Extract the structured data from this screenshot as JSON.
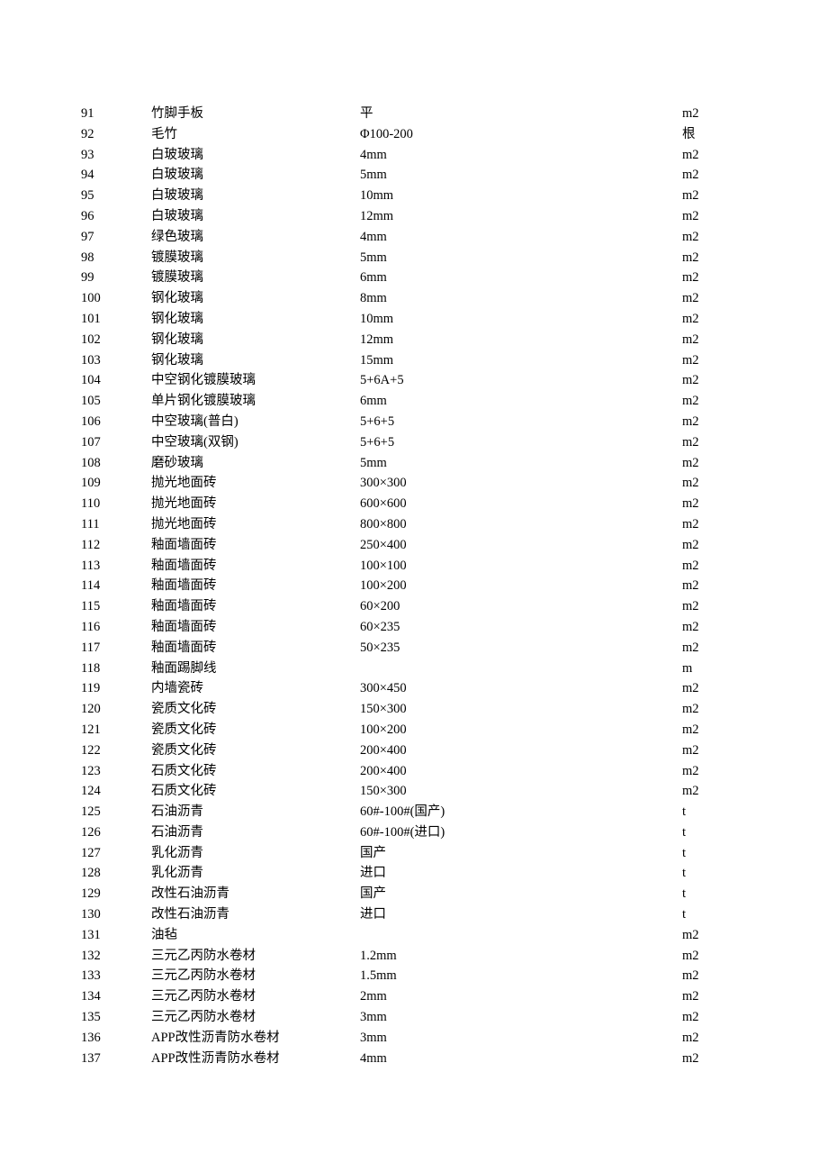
{
  "table": {
    "columns": {
      "num_width": 78,
      "name_width": 232,
      "spec_width": 358,
      "unit_width": 60
    },
    "font": {
      "size": 14.5,
      "line_height": 22.8,
      "family": "SimSun",
      "color": "#000000"
    },
    "background_color": "#ffffff",
    "rows": [
      {
        "num": "91",
        "name": "竹脚手板",
        "spec": "平",
        "unit": "m2"
      },
      {
        "num": "92",
        "name": "毛竹",
        "spec": "Φ100-200",
        "unit": "根"
      },
      {
        "num": "93",
        "name": "白玻玻璃",
        "spec": "4mm",
        "unit": "m2"
      },
      {
        "num": "94",
        "name": "白玻玻璃",
        "spec": "5mm",
        "unit": "m2"
      },
      {
        "num": "95",
        "name": "白玻玻璃",
        "spec": "10mm",
        "unit": "m2"
      },
      {
        "num": "96",
        "name": "白玻玻璃",
        "spec": "12mm",
        "unit": "m2"
      },
      {
        "num": "97",
        "name": "绿色玻璃",
        "spec": "4mm",
        "unit": "m2"
      },
      {
        "num": "98",
        "name": "镀膜玻璃",
        "spec": "5mm",
        "unit": "m2"
      },
      {
        "num": "99",
        "name": "镀膜玻璃",
        "spec": "6mm",
        "unit": "m2"
      },
      {
        "num": "100",
        "name": "钢化玻璃",
        "spec": "8mm",
        "unit": "m2"
      },
      {
        "num": "101",
        "name": "钢化玻璃",
        "spec": "10mm",
        "unit": "m2"
      },
      {
        "num": "102",
        "name": "钢化玻璃",
        "spec": "12mm",
        "unit": "m2"
      },
      {
        "num": "103",
        "name": "钢化玻璃",
        "spec": "15mm",
        "unit": "m2"
      },
      {
        "num": "104",
        "name": "中空钢化镀膜玻璃",
        "spec": "5+6A+5",
        "unit": "m2"
      },
      {
        "num": "105",
        "name": "单片钢化镀膜玻璃",
        "spec": "6mm",
        "unit": "m2"
      },
      {
        "num": "106",
        "name": "中空玻璃(普白)",
        "spec": "5+6+5",
        "unit": "m2"
      },
      {
        "num": "107",
        "name": "中空玻璃(双钢)",
        "spec": "5+6+5",
        "unit": "m2"
      },
      {
        "num": "108",
        "name": "磨砂玻璃",
        "spec": "5mm",
        "unit": "m2"
      },
      {
        "num": "109",
        "name": "抛光地面砖",
        "spec": "300×300",
        "unit": "m2"
      },
      {
        "num": "110",
        "name": "抛光地面砖",
        "spec": "600×600",
        "unit": "m2"
      },
      {
        "num": "111",
        "name": "抛光地面砖",
        "spec": "800×800",
        "unit": "m2"
      },
      {
        "num": "112",
        "name": "釉面墙面砖",
        "spec": "250×400",
        "unit": "m2"
      },
      {
        "num": "113",
        "name": "釉面墙面砖",
        "spec": "100×100",
        "unit": "m2"
      },
      {
        "num": "114",
        "name": "釉面墙面砖",
        "spec": "100×200",
        "unit": "m2"
      },
      {
        "num": "115",
        "name": "釉面墙面砖",
        "spec": "60×200",
        "unit": "m2"
      },
      {
        "num": "116",
        "name": "釉面墙面砖",
        "spec": "60×235",
        "unit": "m2"
      },
      {
        "num": "117",
        "name": "釉面墙面砖",
        "spec": "50×235",
        "unit": "m2"
      },
      {
        "num": "118",
        "name": "釉面踢脚线",
        "spec": "",
        "unit": "m"
      },
      {
        "num": "119",
        "name": "内墙瓷砖",
        "spec": "300×450",
        "unit": "m2"
      },
      {
        "num": "120",
        "name": "瓷质文化砖",
        "spec": "150×300",
        "unit": "m2"
      },
      {
        "num": "121",
        "name": "瓷质文化砖",
        "spec": "100×200",
        "unit": "m2"
      },
      {
        "num": "122",
        "name": "瓷质文化砖",
        "spec": "200×400",
        "unit": "m2"
      },
      {
        "num": "123",
        "name": "石质文化砖",
        "spec": "200×400",
        "unit": "m2"
      },
      {
        "num": "124",
        "name": "石质文化砖",
        "spec": "150×300",
        "unit": "m2"
      },
      {
        "num": "125",
        "name": "石油沥青",
        "spec": "60#-100#(国产)",
        "unit": "t"
      },
      {
        "num": "126",
        "name": "石油沥青",
        "spec": "60#-100#(进口)",
        "unit": "t"
      },
      {
        "num": "127",
        "name": "乳化沥青",
        "spec": "国产",
        "unit": "t"
      },
      {
        "num": "128",
        "name": "乳化沥青",
        "spec": "进口",
        "unit": "t"
      },
      {
        "num": "129",
        "name": "改性石油沥青",
        "spec": "国产",
        "unit": "t"
      },
      {
        "num": "130",
        "name": "改性石油沥青",
        "spec": "进口",
        "unit": "t"
      },
      {
        "num": "131",
        "name": "油毡",
        "spec": "",
        "unit": "m2"
      },
      {
        "num": "132",
        "name": "三元乙丙防水卷材",
        "spec": "1.2mm",
        "unit": "m2"
      },
      {
        "num": "133",
        "name": "三元乙丙防水卷材",
        "spec": "1.5mm",
        "unit": "m2"
      },
      {
        "num": "134",
        "name": "三元乙丙防水卷材",
        "spec": "2mm",
        "unit": "m2"
      },
      {
        "num": "135",
        "name": "三元乙丙防水卷材",
        "spec": "3mm",
        "unit": "m2"
      },
      {
        "num": "136",
        "name": "APP改性沥青防水卷材",
        "spec": "3mm",
        "unit": "m2"
      },
      {
        "num": "137",
        "name": "APP改性沥青防水卷材",
        "spec": "4mm",
        "unit": "m2"
      }
    ]
  }
}
